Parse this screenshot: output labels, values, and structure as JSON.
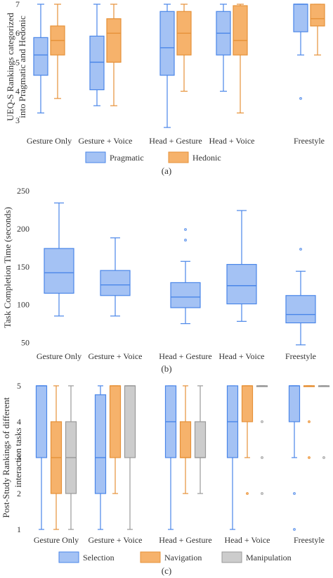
{
  "chart_data": [
    {
      "panel_label": "(a)",
      "type": "box",
      "ylabel": "UEQ-S Rankings categorized into Pragmatic and Hedonic",
      "ylabel_lines": [
        "UEQ-S Rankings categorized",
        "into Pragmatic and Hedonic"
      ],
      "ylim": [
        2.8,
        7.0
      ],
      "yticks": [
        3,
        4,
        5,
        6,
        7
      ],
      "categories": [
        "Gesture Only",
        "Gesture + Voice",
        "Head + Gesture",
        "Head + Voice",
        "Freestyle"
      ],
      "grid": false,
      "legend_position": "bottom",
      "series": [
        {
          "name": "Pragmatic",
          "color": "#4a86e8",
          "fill": "#a4c2f4",
          "boxes": [
            {
              "min": 3.25,
              "q1": 4.55,
              "median": 5.25,
              "q3": 5.85,
              "max": 7.0,
              "outliers": []
            },
            {
              "min": 3.5,
              "q1": 4.05,
              "median": 5.0,
              "q3": 5.9,
              "max": 7.0,
              "outliers": []
            },
            {
              "min": 2.75,
              "q1": 4.55,
              "median": 5.5,
              "q3": 6.75,
              "max": 7.0,
              "outliers": []
            },
            {
              "min": 4.0,
              "q1": 5.25,
              "median": 6.0,
              "q3": 6.75,
              "max": 7.0,
              "outliers": []
            },
            {
              "min": 5.25,
              "q1": 6.05,
              "median": 7.0,
              "q3": 7.0,
              "max": 7.0,
              "outliers": [
                3.75
              ]
            }
          ]
        },
        {
          "name": "Hedonic",
          "color": "#e69138",
          "fill": "#f6b26b",
          "boxes": [
            {
              "min": 3.75,
              "q1": 5.25,
              "median": 5.75,
              "q3": 6.25,
              "max": 7.0,
              "outliers": []
            },
            {
              "min": 3.5,
              "q1": 5.0,
              "median": 6.0,
              "q3": 6.5,
              "max": 7.0,
              "outliers": []
            },
            {
              "min": 4.0,
              "q1": 5.25,
              "median": 6.0,
              "q3": 6.75,
              "max": 7.0,
              "outliers": []
            },
            {
              "min": 3.25,
              "q1": 5.25,
              "median": 5.75,
              "q3": 6.95,
              "max": 7.0,
              "outliers": []
            },
            {
              "min": 5.25,
              "q1": 6.25,
              "median": 6.5,
              "q3": 7.0,
              "max": 7.0,
              "outliers": []
            }
          ]
        }
      ]
    },
    {
      "panel_label": "(b)",
      "type": "box",
      "ylabel": "Task Completion Time (seconds)",
      "ylabel_lines": [
        "Task Completion Time (seconds)"
      ],
      "ylim": [
        45,
        250
      ],
      "yticks": [
        50,
        100,
        150,
        200,
        250
      ],
      "categories": [
        "Gesture Only",
        "Gesture + Voice",
        "Head + Gesture",
        "Head + Voice",
        "Freestyle"
      ],
      "grid": false,
      "legend_position": "none",
      "series": [
        {
          "name": "",
          "color": "#4a86e8",
          "fill": "#a4c2f4",
          "boxes": [
            {
              "min": 85,
              "q1": 115,
              "median": 142,
              "q3": 174,
              "max": 234,
              "outliers": []
            },
            {
              "min": 85,
              "q1": 112,
              "median": 126,
              "q3": 145,
              "max": 188,
              "outliers": []
            },
            {
              "min": 75,
              "q1": 96,
              "median": 110,
              "q3": 129,
              "max": 157,
              "outliers": [
                185,
                199
              ]
            },
            {
              "min": 78,
              "q1": 101,
              "median": 125,
              "q3": 153,
              "max": 224,
              "outliers": []
            },
            {
              "min": 47,
              "q1": 76,
              "median": 87,
              "q3": 112,
              "max": 144,
              "outliers": [
                173
              ]
            }
          ]
        }
      ]
    },
    {
      "panel_label": "(c)",
      "type": "box",
      "ylabel": "Post-Study Rankings of different interaction tasks",
      "ylabel_lines": [
        "Post-Study Rankings of different",
        "interaction tasks"
      ],
      "ylim": [
        1,
        5
      ],
      "yticks": [
        1,
        2,
        3,
        4,
        5
      ],
      "categories": [
        "Gesture Only",
        "Gesture + Voice",
        "Head + Gesture",
        "Head + Voice",
        "Freestyle"
      ],
      "grid": false,
      "legend_position": "bottom",
      "series": [
        {
          "name": "Selection",
          "color": "#4a86e8",
          "fill": "#a4c2f4",
          "boxes": [
            {
              "min": 1,
              "q1": 3,
              "median": 5,
              "q3": 5,
              "max": 5,
              "outliers": []
            },
            {
              "min": 1,
              "q1": 2,
              "median": 3,
              "q3": 4.75,
              "max": 5,
              "outliers": []
            },
            {
              "min": 1,
              "q1": 3,
              "median": 4,
              "q3": 5,
              "max": 5,
              "outliers": []
            },
            {
              "min": 1,
              "q1": 3,
              "median": 4,
              "q3": 5,
              "max": 5,
              "outliers": []
            },
            {
              "min": 3,
              "q1": 4,
              "median": 5,
              "q3": 5,
              "max": 5,
              "outliers": [
                2,
                1
              ]
            }
          ]
        },
        {
          "name": "Navigation",
          "color": "#e69138",
          "fill": "#f6b26b",
          "boxes": [
            {
              "min": 1,
              "q1": 2,
              "median": 3,
              "q3": 4,
              "max": 5,
              "outliers": []
            },
            {
              "min": 2,
              "q1": 3,
              "median": 5,
              "q3": 5,
              "max": 5,
              "outliers": []
            },
            {
              "min": 2,
              "q1": 3,
              "median": 3,
              "q3": 4,
              "max": 5,
              "outliers": []
            },
            {
              "min": 3,
              "q1": 4,
              "median": 5,
              "q3": 5,
              "max": 5,
              "outliers": [
                2
              ]
            },
            {
              "min": 5,
              "q1": 5,
              "median": 5,
              "q3": 5,
              "max": 5,
              "outliers": [
                4,
                3
              ]
            }
          ]
        },
        {
          "name": "Manipulation",
          "color": "#999999",
          "fill": "#cccccc",
          "boxes": [
            {
              "min": 1,
              "q1": 2,
              "median": 3,
              "q3": 4,
              "max": 5,
              "outliers": []
            },
            {
              "min": 1,
              "q1": 3,
              "median": 5,
              "q3": 5,
              "max": 5,
              "outliers": []
            },
            {
              "min": 2,
              "q1": 3,
              "median": 3,
              "q3": 4,
              "max": 5,
              "outliers": []
            },
            {
              "min": 5,
              "q1": 5,
              "median": 5,
              "q3": 5,
              "max": 5,
              "outliers": [
                4,
                3,
                2
              ]
            },
            {
              "min": 5,
              "q1": 5,
              "median": 5,
              "q3": 5,
              "max": 5,
              "outliers": [
                3
              ]
            }
          ]
        }
      ]
    }
  ]
}
